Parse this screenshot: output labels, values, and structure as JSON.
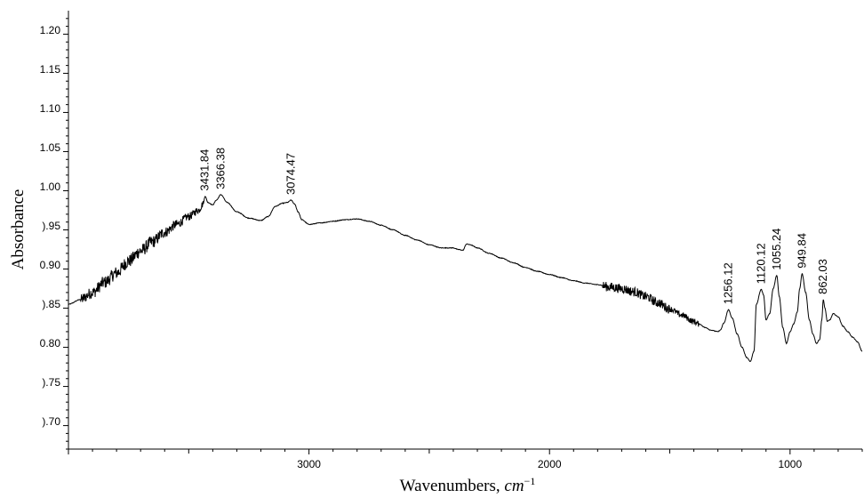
{
  "chart_data": {
    "type": "line",
    "title": "",
    "xlabel": "Wavenumbers, ",
    "xlabel_unit": "cm",
    "xlabel_exp": "−1",
    "ylabel": "Absorbance",
    "xlim": [
      4000,
      700
    ],
    "x_reversed": true,
    "ylim": [
      0.665,
      1.225
    ],
    "grid": false,
    "legend": "none",
    "x_ticks": [
      3000,
      2000,
      1000
    ],
    "x_tick_labels": [
      "3000",
      "2000",
      "1000"
    ],
    "y_ticks": [
      0.7,
      0.75,
      0.8,
      0.85,
      0.9,
      0.95,
      1.0,
      1.05,
      1.1,
      1.15,
      1.2
    ],
    "y_tick_labels": [
      ").70",
      ").75",
      "0.80",
      ").85",
      "0.90",
      ").95",
      "1.00",
      "1.05",
      "1.10",
      "1.15",
      "1.20"
    ],
    "line_color": "#000000",
    "peaks": [
      {
        "x": 3431.84,
        "y": 0.988,
        "label": "3431.84"
      },
      {
        "x": 3366.38,
        "y": 0.99,
        "label": "3366.38"
      },
      {
        "x": 3074.47,
        "y": 0.983,
        "label": "3074.47"
      },
      {
        "x": 1256.12,
        "y": 0.843,
        "label": "1256.12"
      },
      {
        "x": 1120.12,
        "y": 0.869,
        "label": "1120.12"
      },
      {
        "x": 1055.24,
        "y": 0.887,
        "label": "1055.24"
      },
      {
        "x": 949.84,
        "y": 0.889,
        "label": "949.84"
      },
      {
        "x": 862.03,
        "y": 0.856,
        "label": "862.03"
      }
    ],
    "series": [
      {
        "x": [
          4000,
          3950,
          3900,
          3850,
          3800,
          3750,
          3700,
          3650,
          3600,
          3550,
          3500,
          3460,
          3440,
          3431.84,
          3420,
          3400,
          3385,
          3366.38,
          3340,
          3300,
          3250,
          3200,
          3170,
          3140,
          3110,
          3090,
          3074.47,
          3060,
          3045,
          3030,
          3000,
          2950,
          2900,
          2850,
          2800,
          2750,
          2700,
          2650,
          2600,
          2550,
          2500,
          2450,
          2400,
          2380,
          2360,
          2345,
          2330,
          2300,
          2250,
          2200,
          2150,
          2100,
          2050,
          2000,
          1950,
          1900,
          1850,
          1800,
          1750,
          1700,
          1650,
          1600,
          1550,
          1500,
          1450,
          1400,
          1380,
          1350,
          1330,
          1300,
          1290,
          1275,
          1256.12,
          1240,
          1220,
          1200,
          1180,
          1165,
          1150,
          1140,
          1120.12,
          1110,
          1100,
          1085,
          1070,
          1055.24,
          1045,
          1030,
          1015,
          1000,
          985,
          970,
          960,
          949.84,
          935,
          920,
          905,
          890,
          877,
          868,
          862.03,
          855,
          845,
          835,
          820,
          800,
          780,
          760,
          740,
          720,
          700
        ],
        "y": [
          0.85,
          0.856,
          0.865,
          0.878,
          0.89,
          0.905,
          0.918,
          0.93,
          0.942,
          0.952,
          0.962,
          0.97,
          0.978,
          0.988,
          0.98,
          0.977,
          0.983,
          0.99,
          0.98,
          0.968,
          0.96,
          0.957,
          0.962,
          0.975,
          0.979,
          0.98,
          0.983,
          0.978,
          0.968,
          0.958,
          0.952,
          0.954,
          0.956,
          0.958,
          0.959,
          0.956,
          0.951,
          0.945,
          0.938,
          0.932,
          0.926,
          0.922,
          0.922,
          0.92,
          0.919,
          0.927,
          0.926,
          0.922,
          0.915,
          0.909,
          0.903,
          0.897,
          0.892,
          0.888,
          0.884,
          0.88,
          0.877,
          0.875,
          0.872,
          0.87,
          0.866,
          0.86,
          0.852,
          0.844,
          0.836,
          0.828,
          0.825,
          0.82,
          0.817,
          0.815,
          0.817,
          0.826,
          0.843,
          0.832,
          0.812,
          0.795,
          0.782,
          0.777,
          0.79,
          0.85,
          0.869,
          0.862,
          0.83,
          0.838,
          0.87,
          0.887,
          0.86,
          0.82,
          0.8,
          0.815,
          0.825,
          0.84,
          0.87,
          0.889,
          0.865,
          0.83,
          0.812,
          0.8,
          0.805,
          0.83,
          0.856,
          0.845,
          0.828,
          0.83,
          0.838,
          0.834,
          0.822,
          0.815,
          0.808,
          0.802,
          0.79
        ]
      }
    ]
  }
}
